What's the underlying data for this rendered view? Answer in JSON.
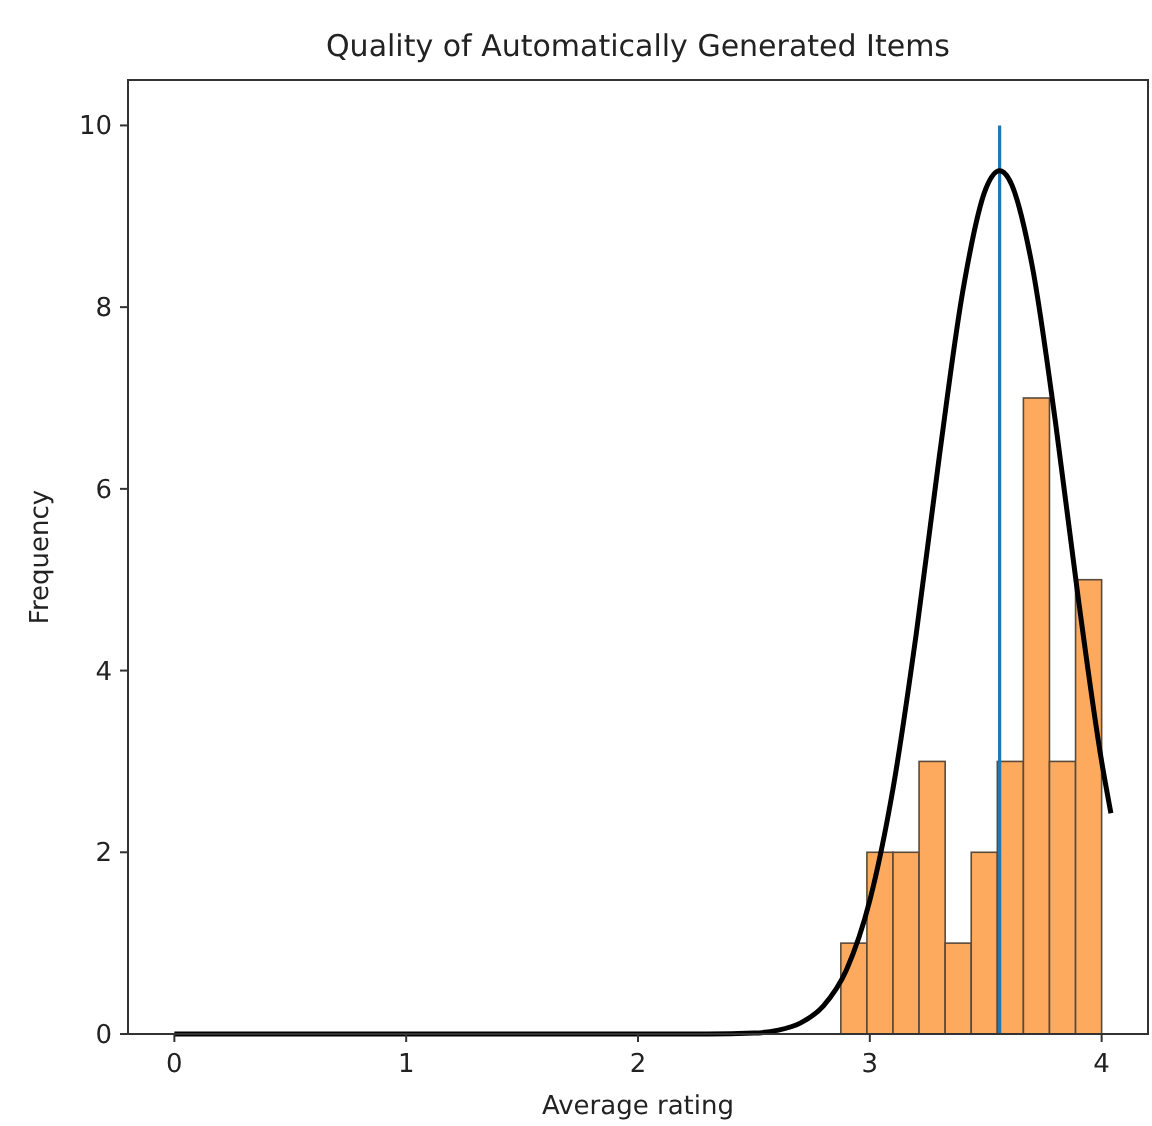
{
  "chart_data": {
    "type": "histogram",
    "title": "Quality of Automatically Generated Items",
    "xlabel": "Average rating",
    "ylabel": "Frequency",
    "xlim": [
      -0.2,
      4.2
    ],
    "ylim": [
      0,
      10.5
    ],
    "xticks": [
      0,
      1,
      2,
      3,
      4
    ],
    "yticks": [
      0,
      2,
      4,
      6,
      8,
      10
    ],
    "grid": false,
    "series": [
      {
        "color": "#fdaa5f",
        "bins": [
          2.875,
          2.9875,
          3.1,
          3.2125,
          3.325,
          3.4375,
          3.55,
          3.6625,
          3.775,
          3.8875,
          4.0
        ],
        "values": [
          1,
          2,
          2,
          3,
          1,
          2,
          3,
          7,
          3,
          5
        ]
      },
      {
        "type": "line",
        "color": "#000000",
        "x": [
          0,
          1,
          2,
          2.3,
          2.5,
          2.6,
          2.7,
          2.8,
          2.9,
          3.0,
          3.1,
          3.2,
          3.3,
          3.4,
          3.5,
          3.56,
          3.6,
          3.7,
          3.8,
          3.9,
          4.0,
          4.04
        ],
        "values": [
          0,
          0,
          0,
          0,
          0.01,
          0.04,
          0.12,
          0.31,
          0.71,
          1.47,
          2.7,
          4.4,
          6.36,
          8.16,
          9.3,
          9.5,
          9.41,
          8.46,
          6.75,
          4.78,
          3.0,
          2.43
        ]
      }
    ],
    "ref_lines": [
      {
        "axis": "x",
        "value": 3.56,
        "color": "#1f77b4"
      }
    ]
  }
}
